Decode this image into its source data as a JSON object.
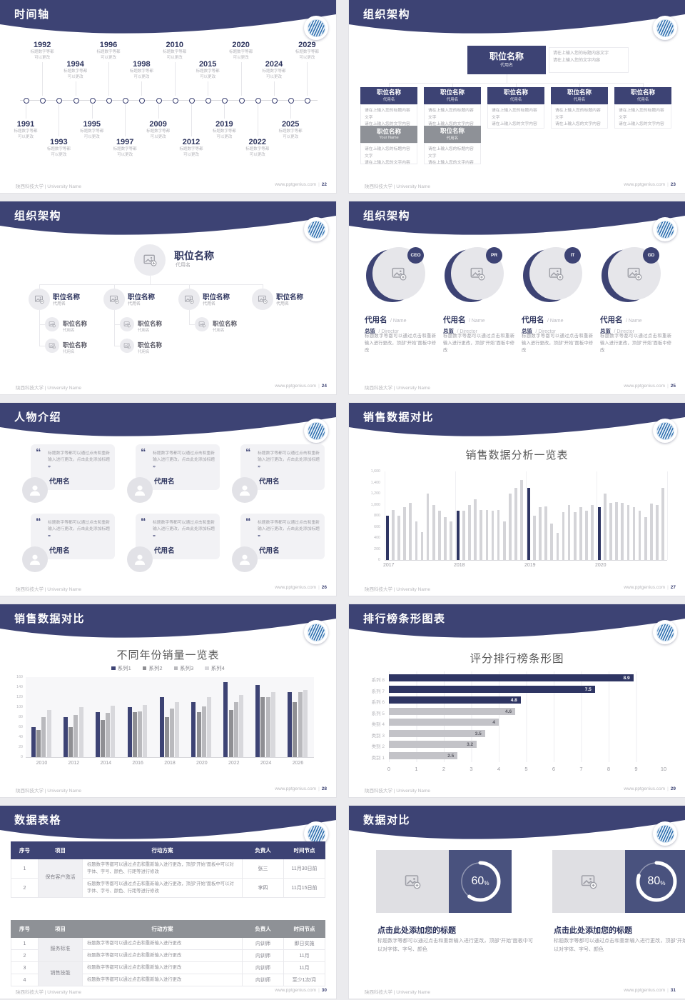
{
  "footer": {
    "left": "陕西科技大学 | University Name",
    "site": "www.pptgenius.com"
  },
  "colors": {
    "header_navy": "#3d4374",
    "bar_navy": "#2e3563",
    "bar_gray": "#d4d4d8",
    "hbar_gray": "#c3c3c8",
    "panel_navy": "#49527e",
    "table_gray_header": "#8e9196"
  },
  "slides": [
    {
      "title": "时间轴",
      "page": "22",
      "timeline": {
        "caption_lines": [
          "标题数字等都",
          "可以更改"
        ],
        "top_years": [
          "1992",
          "1994",
          "1996",
          "1998",
          "2010",
          "2015",
          "2020",
          "2024",
          "2029"
        ],
        "bottom_years": [
          "1991",
          "1993",
          "1995",
          "1997",
          "2009",
          "2012",
          "2019",
          "2022",
          "2025"
        ]
      }
    },
    {
      "title": "组织架构",
      "page": "23",
      "org": {
        "root": {
          "title": "职位名称",
          "subtitle": "代用名"
        },
        "root_desc": [
          "请在上输入您的标题内容文字",
          "请在上输入您的文字内容"
        ],
        "children": [
          {
            "title": "职位名称",
            "subtitle": "代用名",
            "desc": [
              "请在上输入您的标题内容文字",
              "请在上输入您的文字内容"
            ]
          },
          {
            "title": "职位名称",
            "subtitle": "代用名",
            "desc": [
              "请在上输入您的标题内容文字",
              "请在上输入您的文字内容"
            ]
          },
          {
            "title": "职位名称",
            "subtitle": "代用名",
            "desc": [
              "请在上输入您的标题内容文字",
              "请在上输入您的文字内容"
            ]
          },
          {
            "title": "职位名称",
            "subtitle": "代用名",
            "desc": [
              "请在上输入您的标题内容文字",
              "请在上输入您的文字内容"
            ]
          },
          {
            "title": "职位名称",
            "subtitle": "代用名",
            "desc": [
              "请在上输入您的标题内容文字",
              "请在上输入您的文字内容"
            ]
          }
        ],
        "extras": [
          {
            "title": "职位名称",
            "subtitle": "Your Name",
            "desc": [
              "请在上输入您的标题内容文字",
              "请在上输入您的文字内容"
            ]
          },
          {
            "title": "职位名称",
            "subtitle": "代用名",
            "desc": [
              "请在上输入您的标题内容文字",
              "请在上输入您的文字内容"
            ]
          }
        ]
      }
    },
    {
      "title": "组织架构",
      "page": "24",
      "tree": {
        "root": {
          "title": "职位名称",
          "subtitle": "代用名"
        },
        "level2": [
          {
            "title": "职位名称",
            "subtitle": "代用名",
            "children": [
              {
                "title": "职位名称",
                "subtitle": "代用名"
              },
              {
                "title": "职位名称",
                "subtitle": "代用名"
              }
            ]
          },
          {
            "title": "职位名称",
            "subtitle": "代用名",
            "children": [
              {
                "title": "职位名称",
                "subtitle": "代用名"
              },
              {
                "title": "职位名称",
                "subtitle": "代用名"
              }
            ]
          },
          {
            "title": "职位名称",
            "subtitle": "代用名",
            "children": [
              {
                "title": "职位名称",
                "subtitle": "代用名"
              }
            ]
          },
          {
            "title": "职位名称",
            "subtitle": "代用名",
            "children": []
          }
        ]
      }
    },
    {
      "title": "组织架构",
      "page": "25",
      "profiles": {
        "badges": [
          "CEO",
          "PR",
          "IT",
          "GD"
        ],
        "name": "代用名",
        "name_suffix": "/ Name",
        "role": "总监",
        "role_suffix": "/ Director",
        "body": "标题数字等都可以通过点击和重新输入进行更改，顶部“开始”面板中修改"
      }
    },
    {
      "title": "人物介绍",
      "page": "26",
      "people": {
        "quote": "标题数字等都可以通过点击和重新输入进行更改，点击此处添加标题",
        "name": "代用名",
        "count": 6
      }
    },
    {
      "title": "销售数据对比",
      "page": "27",
      "chart_index": 0
    },
    {
      "title": "销售数据对比",
      "page": "28",
      "chart_index": 1
    },
    {
      "title": "排行榜条形图表",
      "page": "29",
      "chart_index": 2
    },
    {
      "title": "数据表格",
      "page": "30",
      "tables": [
        {
          "style": "navy",
          "columns": [
            "序号",
            "项目",
            "行动方案",
            "负责人",
            "时间节点"
          ],
          "groups": [
            {
              "label": "保有客户激活",
              "rows": [
                {
                  "no": "1",
                  "action": "标题数字等都可以通过点击和重新输入进行更改，顶部“开始”面板中可以对字体、字号、颜色、行距等进行修改",
                  "owner": "张三",
                  "time": "11月30日前"
                },
                {
                  "no": "2",
                  "action": "标题数字等都可以通过点击和重新输入进行更改，顶部“开始”面板中可以对字体、字号、颜色、行距等进行修改",
                  "owner": "李四",
                  "time": "11月15日前"
                }
              ]
            }
          ]
        },
        {
          "style": "gray",
          "columns": [
            "序号",
            "项目",
            "行动方案",
            "负责人",
            "时间节点"
          ],
          "groups": [
            {
              "label": "服务标准",
              "rows": [
                {
                  "no": "1",
                  "action": "标题数字等都可以通过点击和重新输入进行更改",
                  "owner": "内训师",
                  "time": "即日实施"
                },
                {
                  "no": "2",
                  "action": "标题数字等都可以通过点击和重新输入进行更改",
                  "owner": "内训师",
                  "time": "11月"
                }
              ]
            },
            {
              "label": "销售技能",
              "rows": [
                {
                  "no": "3",
                  "action": "标题数字等都可以通过点击和重新输入进行更改",
                  "owner": "内训师",
                  "time": "11月"
                },
                {
                  "no": "4",
                  "action": "标题数字等都可以通过点击和重新输入进行更改",
                  "owner": "内训师",
                  "time": "至少1次/月"
                }
              ]
            }
          ]
        }
      ]
    },
    {
      "title": "数据对比",
      "page": "31",
      "compare": {
        "items": [
          {
            "percent": 60
          },
          {
            "percent": 80
          }
        ],
        "item_title": "点击此处添加您的标题",
        "item_body": "标题数字等都可以通过点击和重新输入进行更改，顶部“开始”面板中可以对字体、字号、颜色"
      }
    }
  ],
  "chart_data": [
    {
      "type": "bar",
      "title": "销售数据分析一览表",
      "ylim": [
        0,
        1600
      ],
      "yticks": [
        "1,600",
        "1,400",
        "1,200",
        "1,000",
        "800",
        "600",
        "400",
        "200",
        "0"
      ],
      "highlight_first_of_group": true,
      "groups": [
        {
          "label": "2017",
          "values": [
            800,
            900,
            800,
            950,
            1030,
            700,
            500,
            1200,
            990,
            890,
            780,
            700
          ]
        },
        {
          "label": "2018",
          "values": [
            890,
            890,
            1000,
            1100,
            900,
            900,
            890,
            900,
            700,
            1200,
            1300,
            1450
          ]
        },
        {
          "label": "2019",
          "values": [
            1300,
            800,
            960,
            970,
            660,
            490,
            870,
            990,
            860,
            960,
            890,
            990
          ]
        },
        {
          "label": "2020",
          "values": [
            950,
            1200,
            1030,
            1040,
            1030,
            990,
            960,
            890,
            780,
            1020,
            1000,
            1300
          ]
        }
      ]
    },
    {
      "type": "bar",
      "title": "不同年份销量一览表",
      "legend": [
        "系列1",
        "系列2",
        "系列3",
        "系列4"
      ],
      "series_colors": [
        "#3d4374",
        "#8f8f93",
        "#b9b9bd",
        "#d8d8dc"
      ],
      "categories": [
        "2010",
        "2012",
        "2014",
        "2016",
        "2018",
        "2020",
        "2022",
        "2024",
        "2026"
      ],
      "series": [
        {
          "name": "系列1",
          "values": [
            60,
            80,
            90,
            100,
            120,
            110,
            150,
            145,
            130
          ]
        },
        {
          "name": "系列2",
          "values": [
            55,
            60,
            75,
            90,
            80,
            90,
            95,
            120,
            110
          ]
        },
        {
          "name": "系列3",
          "values": [
            80,
            85,
            88,
            92,
            97,
            101,
            110,
            120,
            130
          ]
        },
        {
          "name": "系列4",
          "values": [
            95,
            100,
            103,
            105,
            110,
            120,
            125,
            130,
            135
          ]
        }
      ],
      "ylim": [
        0,
        160
      ],
      "yticks": [
        "160",
        "140",
        "120",
        "100",
        "80",
        "60",
        "40",
        "20",
        "0"
      ]
    },
    {
      "type": "hbar",
      "title": "评分排行榜条形图",
      "categories": [
        "系列 8",
        "系列 7",
        "系列 6",
        "系列 5",
        "类别 4",
        "类别 3",
        "类别 2",
        "类别 1"
      ],
      "values": [
        8.9,
        7.5,
        4.8,
        4.6,
        4,
        3.5,
        3.2,
        2.5
      ],
      "value_labels": [
        "8.9",
        "7.5",
        "4.8",
        "4.6",
        "4",
        "3.5",
        "3.2",
        "2.5"
      ],
      "navy_count": 3,
      "xlim": [
        0,
        10
      ],
      "xticks": [
        "0",
        "1",
        "2",
        "3",
        "4",
        "5",
        "6",
        "7",
        "8",
        "9",
        "10"
      ]
    }
  ]
}
